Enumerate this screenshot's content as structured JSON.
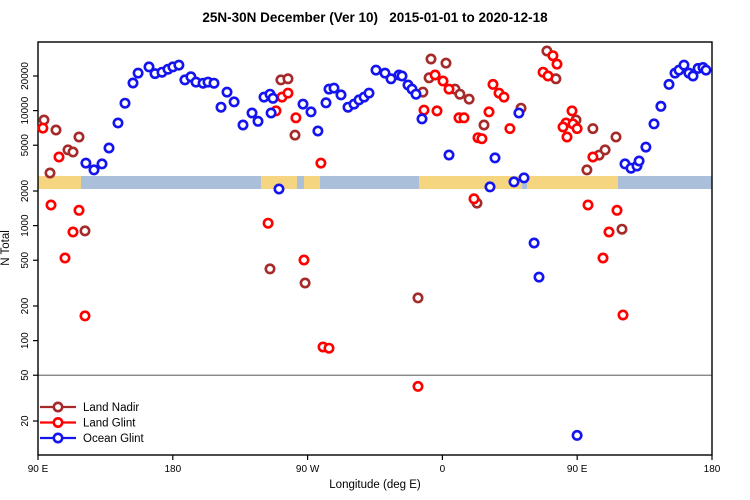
{
  "chart_data": {
    "type": "scatter",
    "title": "25N-30N December (Ver 10)   2015-01-01 to 2020-12-18",
    "xlabel": "Longitude (deg E)",
    "ylabel": "N Total",
    "y_scale": "log",
    "y_ticks": [
      20,
      50,
      100,
      200,
      500,
      1000,
      2000,
      5000,
      10000,
      20000
    ],
    "y_range_approx": [
      10,
      40000
    ],
    "x_axis_span_deg": 450,
    "x_ticks": [
      {
        "label": "90 E",
        "pos": 0
      },
      {
        "label": "180",
        "pos": 90
      },
      {
        "label": "90 W",
        "pos": 180
      },
      {
        "label": "0",
        "pos": 270
      },
      {
        "label": "90 E",
        "pos": 360
      },
      {
        "label": "180",
        "pos": 450
      }
    ],
    "grid": false,
    "hline_y": 50,
    "hline_color": "#7a7a7a",
    "legend_position": "bottom-left",
    "surface_band": {
      "description": "land/ocean strip near N=2000-2600",
      "land_color": "#F5D580",
      "ocean_color": "#AABFD9",
      "segments": [
        {
          "from": 0,
          "to": 28.7,
          "type": "land"
        },
        {
          "from": 28.7,
          "to": 148.9,
          "type": "ocean"
        },
        {
          "from": 148.9,
          "to": 172.9,
          "type": "land"
        },
        {
          "from": 172.9,
          "to": 177.6,
          "type": "ocean"
        },
        {
          "from": 177.6,
          "to": 188.3,
          "type": "land"
        },
        {
          "from": 188.3,
          "to": 254.4,
          "type": "ocean"
        },
        {
          "from": 254.4,
          "to": 323.2,
          "type": "land"
        },
        {
          "from": 323.2,
          "to": 326.5,
          "type": "ocean"
        },
        {
          "from": 326.5,
          "to": 387.2,
          "type": "land"
        },
        {
          "from": 387.2,
          "to": 450,
          "type": "ocean"
        }
      ]
    },
    "series": [
      {
        "name": "Land Nadir",
        "color": "#A52A2A",
        "points": [
          [
            4.0,
            8280
          ],
          [
            12.0,
            6780
          ],
          [
            20.0,
            4550
          ],
          [
            23.4,
            4370
          ],
          [
            27.4,
            5900
          ],
          [
            8.0,
            2870
          ],
          [
            31.4,
            900
          ],
          [
            162.2,
            18500
          ],
          [
            166.9,
            18900
          ],
          [
            171.6,
            6130
          ],
          [
            154.9,
            420
          ],
          [
            178.3,
            317
          ],
          [
            262.4,
            28100
          ],
          [
            272.4,
            25900
          ],
          [
            261.1,
            19300
          ],
          [
            257.0,
            14500
          ],
          [
            278.4,
            15400
          ],
          [
            281.7,
            13900
          ],
          [
            287.8,
            12600
          ],
          [
            297.8,
            7500
          ],
          [
            322.5,
            10500
          ],
          [
            293.1,
            1570
          ],
          [
            253.7,
            235
          ],
          [
            339.8,
            33000
          ],
          [
            345.8,
            18900
          ],
          [
            359.2,
            8280
          ],
          [
            370.5,
            6970
          ],
          [
            374.6,
            4100
          ],
          [
            378.6,
            4550
          ],
          [
            385.9,
            5900
          ],
          [
            366.5,
            3050
          ],
          [
            389.9,
            930
          ]
        ]
      },
      {
        "name": "Land Glint",
        "color": "#FF0000",
        "points": [
          [
            3.3,
            7050
          ],
          [
            14.0,
            3950
          ],
          [
            8.7,
            1510
          ],
          [
            27.4,
            1360
          ],
          [
            23.4,
            880
          ],
          [
            18.0,
            523
          ],
          [
            31.4,
            164
          ],
          [
            162.9,
            13100
          ],
          [
            166.9,
            14200
          ],
          [
            158.9,
            9950
          ],
          [
            172.2,
            8660
          ],
          [
            188.9,
            3500
          ],
          [
            153.6,
            1050
          ],
          [
            177.6,
            502
          ],
          [
            190.3,
            88
          ],
          [
            194.3,
            86
          ],
          [
            265.1,
            20400
          ],
          [
            270.4,
            18100
          ],
          [
            274.4,
            15400
          ],
          [
            257.7,
            10100
          ],
          [
            266.4,
            9950
          ],
          [
            281.1,
            8660
          ],
          [
            284.4,
            8660
          ],
          [
            293.8,
            5810
          ],
          [
            296.4,
            5700
          ],
          [
            301.1,
            9750
          ],
          [
            303.8,
            16900
          ],
          [
            307.8,
            14200
          ],
          [
            311.1,
            13100
          ],
          [
            315.1,
            6970
          ],
          [
            291.1,
            1710
          ],
          [
            253.7,
            40
          ],
          [
            337.2,
            21600
          ],
          [
            340.5,
            20000
          ],
          [
            343.8,
            30000
          ],
          [
            346.5,
            25400
          ],
          [
            356.5,
            9950
          ],
          [
            352.5,
            7800
          ],
          [
            350.5,
            7200
          ],
          [
            357.2,
            7670
          ],
          [
            359.9,
            6970
          ],
          [
            353.2,
            5900
          ],
          [
            370.5,
            3950
          ],
          [
            367.2,
            1510
          ],
          [
            386.6,
            1360
          ],
          [
            381.2,
            880
          ],
          [
            377.2,
            523
          ],
          [
            390.6,
            167
          ]
        ]
      },
      {
        "name": "Ocean Glint",
        "color": "#1414EE",
        "points": [
          [
            32.0,
            3500
          ],
          [
            37.4,
            3050
          ],
          [
            42.7,
            3440
          ],
          [
            47.4,
            4730
          ],
          [
            53.4,
            7800
          ],
          [
            58.1,
            11600
          ],
          [
            63.4,
            17400
          ],
          [
            66.8,
            21200
          ],
          [
            74.1,
            24000
          ],
          [
            78.1,
            21000
          ],
          [
            82.8,
            21600
          ],
          [
            86.8,
            22900
          ],
          [
            90.1,
            24000
          ],
          [
            94.1,
            24900
          ],
          [
            98.1,
            18500
          ],
          [
            102.1,
            19700
          ],
          [
            105.5,
            17700
          ],
          [
            110.2,
            17300
          ],
          [
            113.5,
            17700
          ],
          [
            117.5,
            17300
          ],
          [
            122.2,
            10700
          ],
          [
            126.2,
            14500
          ],
          [
            130.9,
            11900
          ],
          [
            136.9,
            7500
          ],
          [
            142.9,
            9530
          ],
          [
            146.9,
            8080
          ],
          [
            150.9,
            13100
          ],
          [
            154.9,
            13900
          ],
          [
            156.9,
            12800
          ],
          [
            155.6,
            9530
          ],
          [
            176.9,
            11400
          ],
          [
            182.3,
            9750
          ],
          [
            186.9,
            6650
          ],
          [
            192.3,
            11700
          ],
          [
            194.3,
            15400
          ],
          [
            197.6,
            15700
          ],
          [
            202.3,
            13700
          ],
          [
            207.0,
            10700
          ],
          [
            211.0,
            11400
          ],
          [
            214.3,
            12400
          ],
          [
            217.7,
            13100
          ],
          [
            221.0,
            14200
          ],
          [
            225.7,
            22500
          ],
          [
            231.7,
            21200
          ],
          [
            235.7,
            18900
          ],
          [
            241.0,
            20400
          ],
          [
            243.0,
            20000
          ],
          [
            247.0,
            16700
          ],
          [
            249.7,
            15400
          ],
          [
            252.4,
            13900
          ],
          [
            256.4,
            8480
          ],
          [
            160.9,
            2080
          ],
          [
            274.4,
            4110
          ],
          [
            301.8,
            2170
          ],
          [
            305.1,
            3880
          ],
          [
            321.1,
            9530
          ],
          [
            317.8,
            2400
          ],
          [
            324.5,
            2600
          ],
          [
            331.2,
            706
          ],
          [
            334.5,
            357
          ],
          [
            359.9,
            15
          ],
          [
            391.9,
            3440
          ],
          [
            395.9,
            3160
          ],
          [
            399.9,
            3300
          ],
          [
            401.3,
            3650
          ],
          [
            405.9,
            4820
          ],
          [
            411.3,
            7670
          ],
          [
            415.9,
            10900
          ],
          [
            421.3,
            16900
          ],
          [
            425.3,
            21200
          ],
          [
            428.0,
            22500
          ],
          [
            431.3,
            24900
          ],
          [
            434.6,
            21200
          ],
          [
            437.3,
            20000
          ],
          [
            440.7,
            23300
          ],
          [
            444.0,
            23700
          ],
          [
            446.0,
            22500
          ]
        ]
      }
    ]
  }
}
